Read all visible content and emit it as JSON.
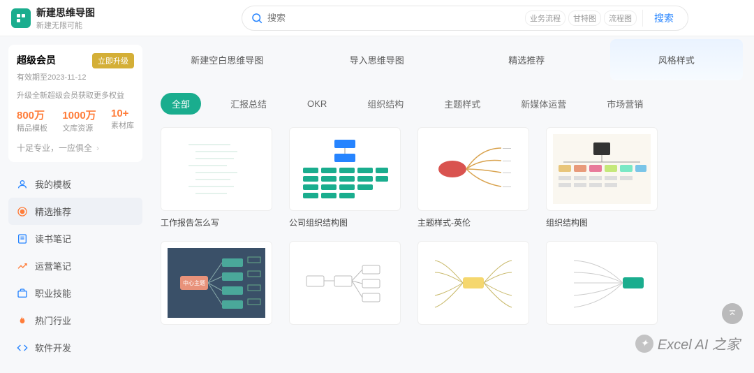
{
  "header": {
    "title": "新建思维导图",
    "subtitle": "新建无限可能",
    "search_placeholder": "搜索",
    "tags": [
      "业务流程",
      "甘特图",
      "流程图"
    ],
    "search_button": "搜索"
  },
  "member": {
    "title": "超级会员",
    "upgrade_btn": "立即升级",
    "expire": "有效期至2023-11-12",
    "tip": "升级全新超级会员获取更多权益",
    "stats": [
      {
        "num": "800万",
        "label": "精品模板"
      },
      {
        "num": "1000万",
        "label": "文库资源"
      },
      {
        "num": "10+",
        "label": "素材库"
      }
    ],
    "slogan": "十足专业，一应俱全"
  },
  "nav": [
    {
      "icon": "user",
      "label": "我的模板",
      "color": "#2684ff"
    },
    {
      "icon": "rec",
      "label": "精选推荐",
      "color": "#ff7d3a",
      "active": true
    },
    {
      "icon": "book",
      "label": "读书笔记",
      "color": "#2684ff"
    },
    {
      "icon": "note",
      "label": "运营笔记",
      "color": "#ff7d3a"
    },
    {
      "icon": "bag",
      "label": "职业技能",
      "color": "#2684ff"
    },
    {
      "icon": "fire",
      "label": "热门行业",
      "color": "#ff7d3a"
    },
    {
      "icon": "code",
      "label": "软件开发",
      "color": "#2684ff"
    }
  ],
  "top_cards": [
    "新建空白思维导图",
    "导入思维导图",
    "精选推荐",
    "风格样式"
  ],
  "filters": [
    {
      "label": "全部",
      "active": true
    },
    {
      "label": "汇报总结"
    },
    {
      "label": "OKR"
    },
    {
      "label": "组织结构"
    },
    {
      "label": "主题样式"
    },
    {
      "label": "新媒体运营"
    },
    {
      "label": "市场营销"
    }
  ],
  "templates_row1": [
    {
      "title": "工作报告怎么写",
      "thumb_type": "outline"
    },
    {
      "title": "公司组织结构图",
      "thumb_type": "org"
    },
    {
      "title": "主题样式-英伦",
      "thumb_type": "radial"
    },
    {
      "title": "组织结构图",
      "thumb_type": "hier"
    }
  ],
  "templates_row2_count": 4,
  "row2_thumbs": [
    "center",
    "flow",
    "radial2",
    "side"
  ],
  "colors": {
    "brand_green": "#1aad8e",
    "accent_orange": "#ff7d3a",
    "accent_blue": "#2684ff",
    "gold": "#d4af37",
    "border": "#eeeeee",
    "bg": "#f7f8fa",
    "text_muted": "#999999"
  },
  "watermark": "Excel AI 之家"
}
